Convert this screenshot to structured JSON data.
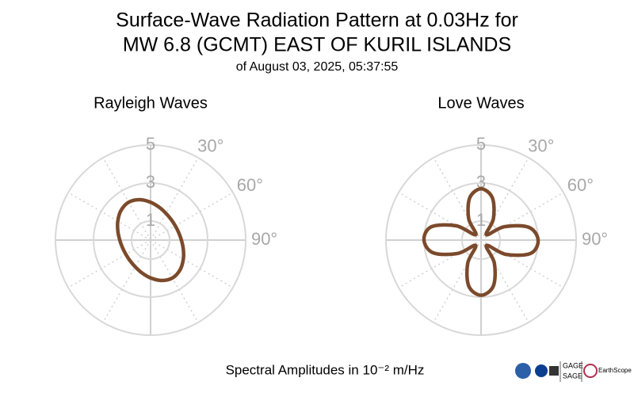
{
  "header": {
    "title": "Surface-Wave Radiation Pattern at 0.03Hz for",
    "title2": "MW 6.8 (GCMT) EAST OF KURIL ISLANDS",
    "subtitle": "of August 03, 2025, 05:37:55"
  },
  "caption": "Spectral Amplitudes in 10⁻² m/Hz",
  "logos": [
    "GAGE",
    "SAGE",
    "EarthScope"
  ],
  "chart_data": [
    {
      "type": "polar",
      "title": "Rayleigh Waves",
      "color": "#7b4a2b",
      "theta": [
        0,
        15,
        30,
        45,
        60,
        75,
        90,
        105,
        120,
        135,
        150,
        165,
        180,
        195,
        210,
        225,
        240,
        255,
        270,
        285,
        300,
        315,
        330,
        345
      ],
      "values": [
        1.99,
        1.78,
        1.62,
        1.53,
        1.5,
        1.53,
        1.62,
        1.78,
        1.99,
        2.2,
        2.3,
        2.2,
        1.99,
        1.78,
        1.62,
        1.53,
        1.5,
        1.53,
        1.62,
        1.78,
        1.99,
        2.2,
        2.3,
        2.2
      ],
      "rlim": [
        0,
        5
      ],
      "rticks": [
        1,
        3,
        5
      ],
      "thetaticks": [
        {
          "value": 30,
          "label": "30°"
        },
        {
          "value": 60,
          "label": "60°"
        },
        {
          "value": 90,
          "label": "90°"
        }
      ]
    },
    {
      "type": "polar",
      "title": "Love Waves",
      "color": "#7b4a2b",
      "theta": [
        0,
        15,
        30,
        45,
        60,
        75,
        90,
        105,
        120,
        135,
        150,
        165,
        180,
        195,
        210,
        225,
        240,
        255,
        270,
        285,
        300,
        315,
        330,
        345
      ],
      "values": [
        2.7,
        2.3,
        1.3,
        0.4,
        1.4,
        2.6,
        3.0,
        2.7,
        1.5,
        0.4,
        1.4,
        2.5,
        2.9,
        2.5,
        1.4,
        0.4,
        1.4,
        2.6,
        3.0,
        2.7,
        1.5,
        0.4,
        1.3,
        2.3
      ],
      "rlim": [
        0,
        5
      ],
      "rticks": [
        1,
        3,
        5
      ],
      "thetaticks": [
        {
          "value": 30,
          "label": "30°"
        },
        {
          "value": 60,
          "label": "60°"
        },
        {
          "value": 90,
          "label": "90°"
        }
      ]
    }
  ]
}
